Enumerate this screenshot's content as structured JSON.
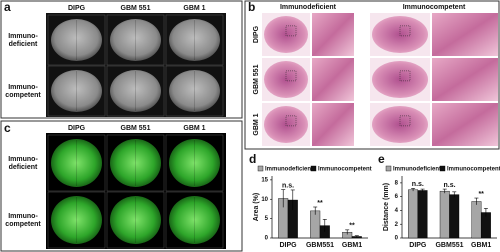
{
  "panel_a": {
    "label": "a",
    "columns": [
      "DIPG",
      "GBM 551",
      "GBM 1"
    ],
    "rows": [
      [
        "Immuno-",
        "deficient"
      ],
      [
        "Immuno-",
        "competent"
      ]
    ]
  },
  "panel_b": {
    "label": "b",
    "groups": [
      "Immunodeficient",
      "Immunocompetent"
    ],
    "rows": [
      "DIPG",
      "GBM 551",
      "GBM 1"
    ]
  },
  "panel_c": {
    "label": "c",
    "columns": [
      "DIPG",
      "GBM 551",
      "GBM 1"
    ],
    "rows": [
      [
        "Immuno-",
        "deficient"
      ],
      [
        "Immuno-",
        "competent"
      ]
    ]
  },
  "chart_data": [
    {
      "type": "bar",
      "label": "d",
      "ylabel": "Area (%)",
      "categories": [
        "DIPG",
        "GBM551",
        "GBM1"
      ],
      "ylim": [
        0,
        16
      ],
      "yticks": [
        0,
        5,
        10,
        15
      ],
      "series": [
        {
          "name": "Immunodeficient",
          "color": "#a6a6a6",
          "values": [
            10.2,
            7.0,
            1.5
          ],
          "errors": [
            2.3,
            1.0,
            0.6
          ]
        },
        {
          "name": "Immunocompetent",
          "color": "#111111",
          "values": [
            9.8,
            3.2,
            0.4
          ],
          "errors": [
            2.6,
            1.6,
            0.2
          ]
        }
      ],
      "annotations": [
        "n.s.",
        "**",
        "**"
      ]
    },
    {
      "type": "bar",
      "label": "e",
      "ylabel": "Distance (mm)",
      "categories": [
        "DIPG",
        "GBM551",
        "GBM1"
      ],
      "ylim": [
        0,
        9
      ],
      "yticks": [
        0,
        2,
        4,
        6,
        8
      ],
      "series": [
        {
          "name": "Immunodeficient",
          "color": "#a6a6a6",
          "values": [
            7.0,
            6.8,
            5.3
          ],
          "errors": [
            0.2,
            0.3,
            0.5
          ]
        },
        {
          "name": "Immunocompetent",
          "color": "#111111",
          "values": [
            6.9,
            6.3,
            3.7
          ],
          "errors": [
            0.2,
            0.4,
            0.6
          ]
        }
      ],
      "annotations": [
        "n.s.",
        "n.s.",
        "**"
      ]
    }
  ]
}
